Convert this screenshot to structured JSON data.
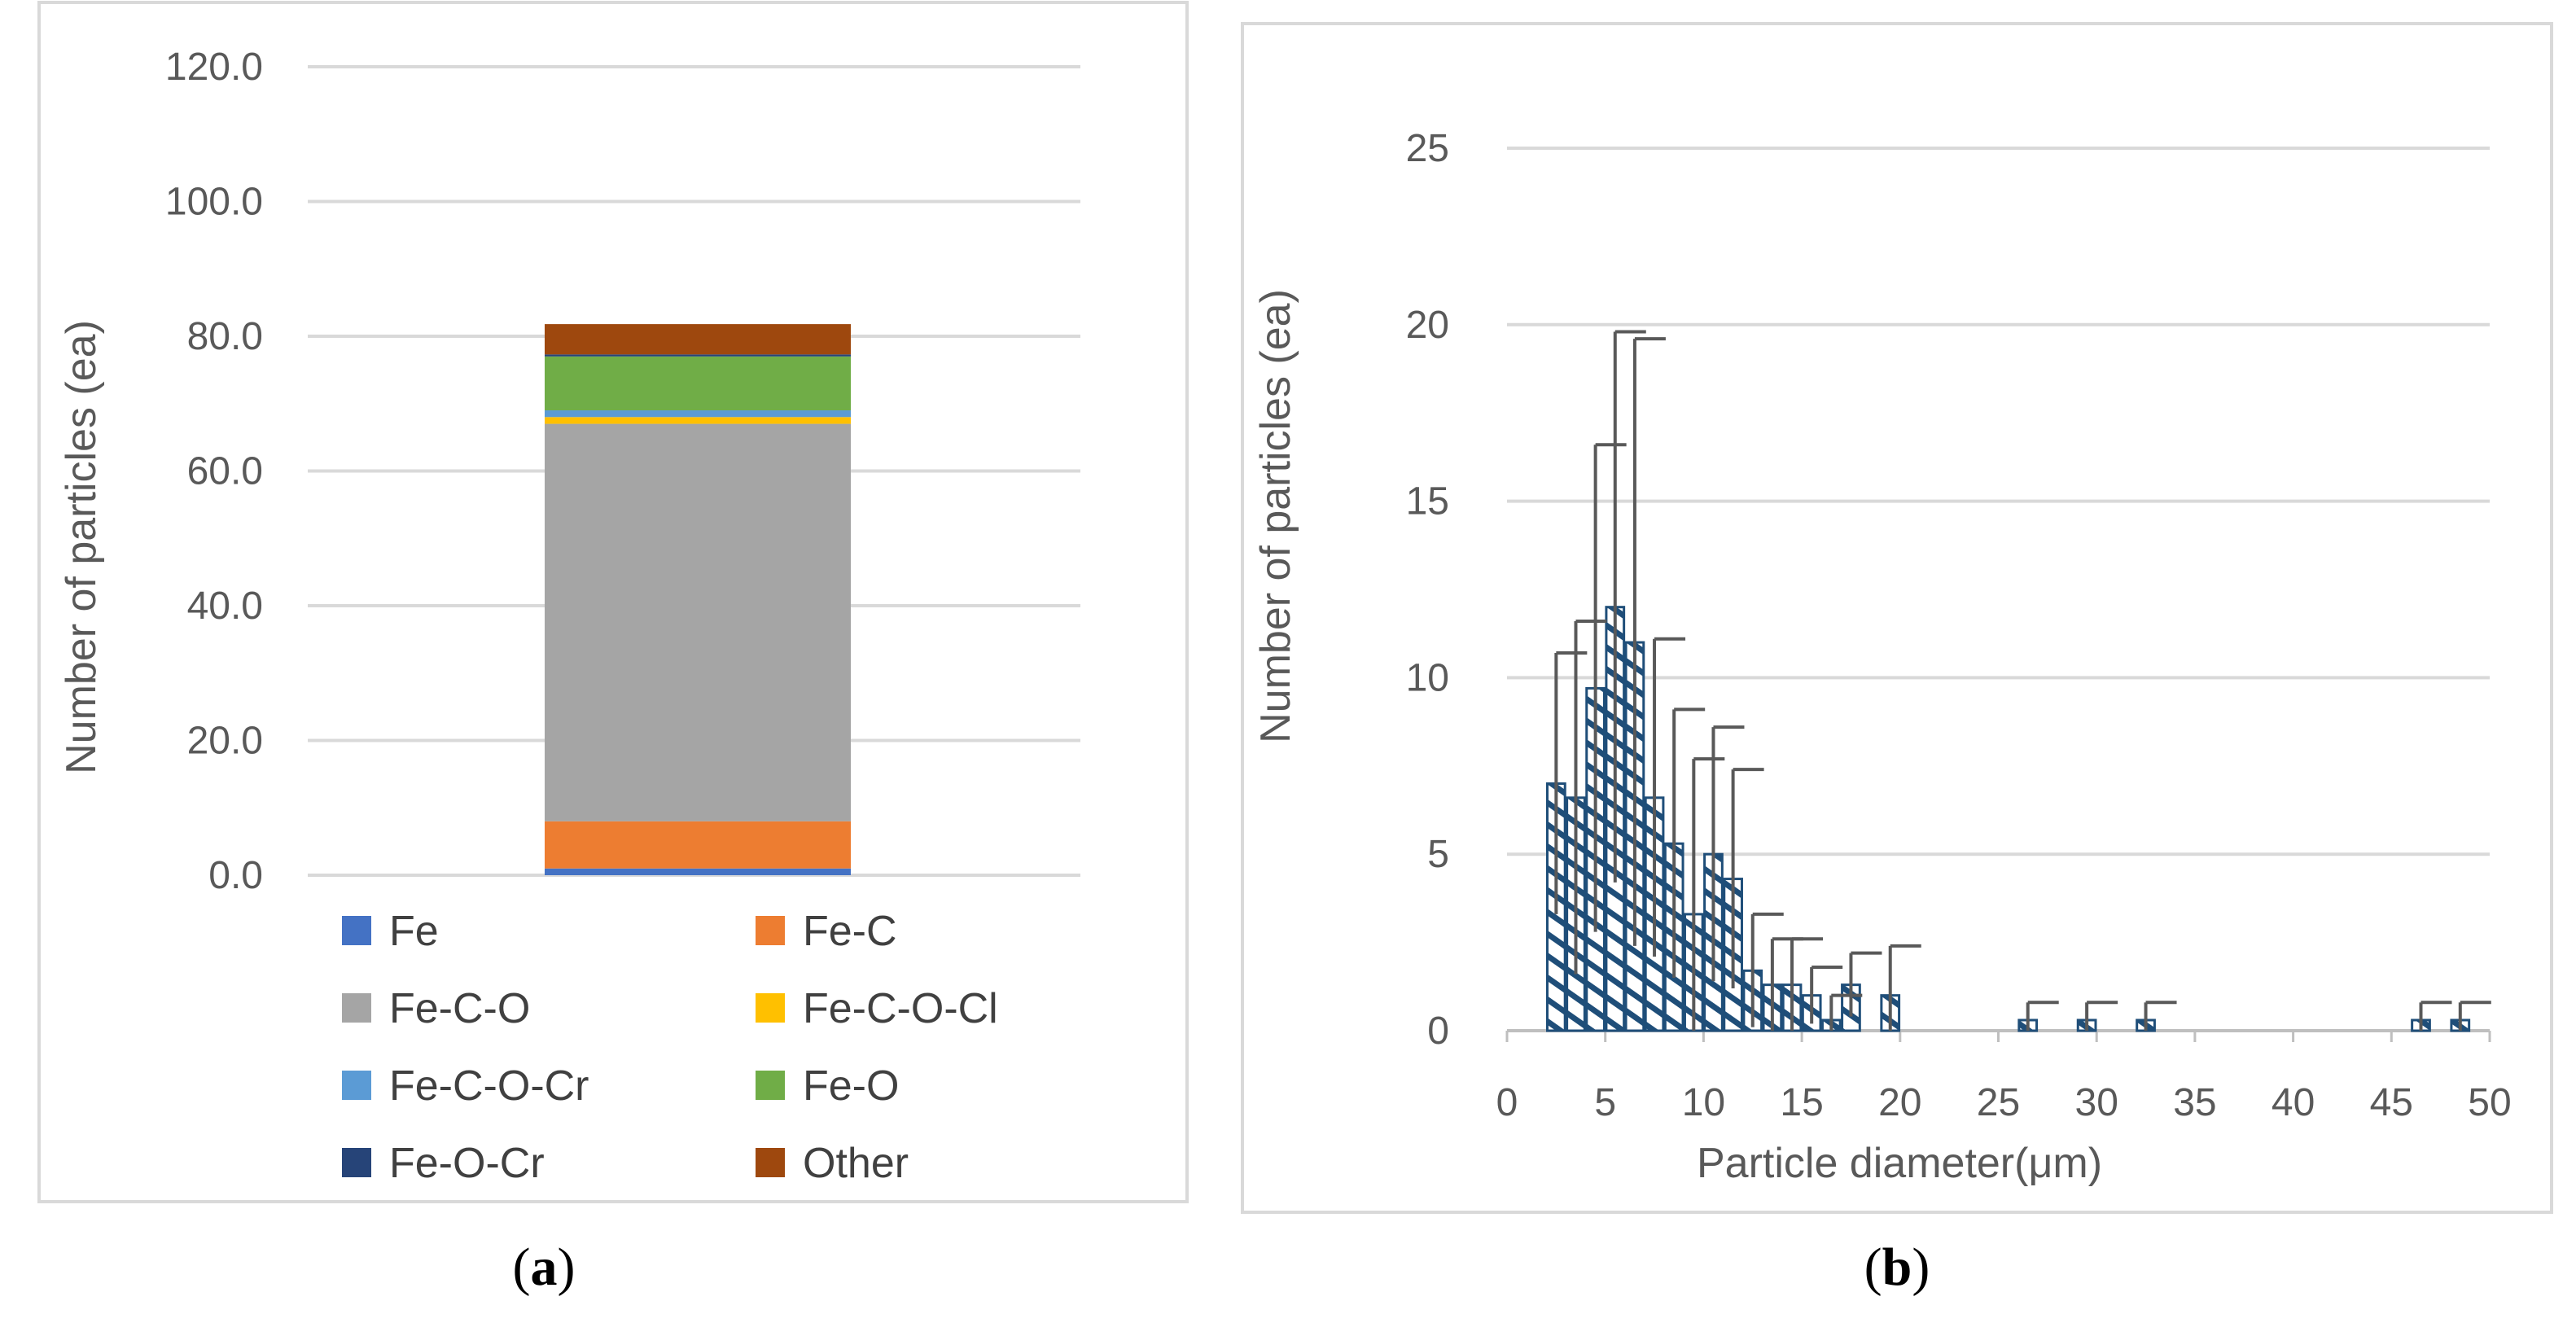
{
  "chart_data": [
    {
      "panel": "(a)",
      "panel_letter": "a",
      "type": "bar",
      "stacked": true,
      "ylabel": "Number of particles (ea)",
      "ylim": [
        0,
        120
      ],
      "yticks": [
        "0.0",
        "20.0",
        "40.0",
        "60.0",
        "80.0",
        "100.0",
        "120.0"
      ],
      "grid": true,
      "legend_position": "bottom",
      "series": [
        {
          "name": "Fe",
          "value": 1.0,
          "color": "#4472C4"
        },
        {
          "name": "Fe-C",
          "value": 7.0,
          "color": "#ED7D31"
        },
        {
          "name": "Fe-C-O",
          "value": 59.0,
          "color": "#A5A5A5"
        },
        {
          "name": "Fe-C-O-Cl",
          "value": 1.0,
          "color": "#FFC000"
        },
        {
          "name": "Fe-C-O-Cr",
          "value": 1.0,
          "color": "#5B9BD5"
        },
        {
          "name": "Fe-O",
          "value": 8.0,
          "color": "#70AD47"
        },
        {
          "name": "Fe-O-Cr",
          "value": 0.3,
          "color": "#264478"
        },
        {
          "name": "Other",
          "value": 4.5,
          "color": "#9E480E"
        }
      ]
    },
    {
      "panel": "(b)",
      "panel_letter": "b",
      "type": "bar",
      "ylabel": "Number of particles (ea)",
      "xlabel": "Particle diameter(μm)",
      "xlim": [
        0,
        50
      ],
      "ylim": [
        0,
        25
      ],
      "xticks": [
        "0",
        "5",
        "10",
        "15",
        "20",
        "25",
        "30",
        "35",
        "40",
        "45",
        "50"
      ],
      "yticks": [
        "0",
        "5",
        "10",
        "15",
        "20",
        "25"
      ],
      "grid": true,
      "bar_color": "#1F4E79",
      "error_bar_color": "#595959",
      "bars": [
        {
          "x": 3,
          "y": 7.0,
          "err": 3.7
        },
        {
          "x": 4,
          "y": 6.6,
          "err": 5.0
        },
        {
          "x": 5,
          "y": 9.7,
          "err": 6.9
        },
        {
          "x": 6,
          "y": 12.0,
          "err": 7.8
        },
        {
          "x": 7,
          "y": 11.0,
          "err": 8.6
        },
        {
          "x": 8,
          "y": 6.6,
          "err": 4.5
        },
        {
          "x": 9,
          "y": 5.3,
          "err": 3.8
        },
        {
          "x": 10,
          "y": 3.3,
          "err": 4.4
        },
        {
          "x": 11,
          "y": 5.0,
          "err": 3.6
        },
        {
          "x": 12,
          "y": 4.3,
          "err": 3.1
        },
        {
          "x": 13,
          "y": 1.7,
          "err": 1.6
        },
        {
          "x": 14,
          "y": 1.3,
          "err": 1.3
        },
        {
          "x": 15,
          "y": 1.3,
          "err": 1.3
        },
        {
          "x": 16,
          "y": 1.0,
          "err": 0.8
        },
        {
          "x": 17,
          "y": 0.3,
          "err": 0.7
        },
        {
          "x": 18,
          "y": 1.3,
          "err": 0.9
        },
        {
          "x": 20,
          "y": 1.0,
          "err": 1.4
        },
        {
          "x": 27,
          "y": 0.3,
          "err": 0.5
        },
        {
          "x": 30,
          "y": 0.3,
          "err": 0.5
        },
        {
          "x": 33,
          "y": 0.3,
          "err": 0.5
        },
        {
          "x": 47,
          "y": 0.3,
          "err": 0.5
        },
        {
          "x": 49,
          "y": 0.3,
          "err": 0.5
        }
      ]
    }
  ]
}
